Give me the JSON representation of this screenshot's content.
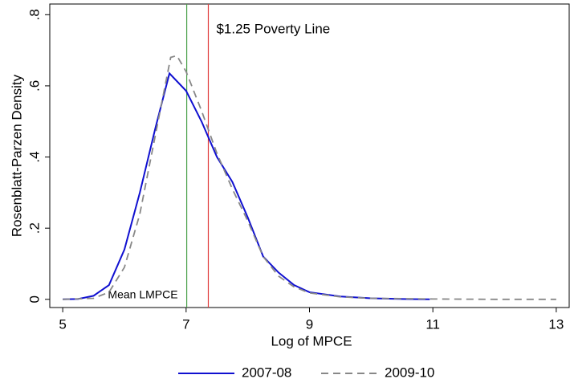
{
  "chart_data": {
    "type": "line",
    "xlabel": "Log of MPCE",
    "ylabel": "Rosenblatt-Parzen Density",
    "xlim": [
      4.79,
      13.21
    ],
    "ylim": [
      -0.023,
      0.83
    ],
    "xticks": [
      5,
      7,
      9,
      11,
      13
    ],
    "yticks": [
      0,
      {
        "value": 0.2,
        "label": ".2"
      },
      {
        "value": 0.4,
        "label": ".4"
      },
      {
        "value": 0.6,
        "label": ".6"
      },
      {
        "value": 0.8,
        "label": ".8"
      }
    ],
    "grid": false,
    "legend": "bottom",
    "series": [
      {
        "name": "2007-08",
        "color": "#1010d0",
        "dash": false,
        "x": [
          5.0,
          5.25,
          5.5,
          5.75,
          6.0,
          6.25,
          6.5,
          6.73,
          7.0,
          7.25,
          7.5,
          7.75,
          8.0,
          8.25,
          8.5,
          8.75,
          9.0,
          9.5,
          10.0,
          10.5,
          10.95
        ],
        "values": [
          0,
          0.001,
          0.01,
          0.04,
          0.14,
          0.3,
          0.48,
          0.635,
          0.586,
          0.5,
          0.4,
          0.33,
          0.23,
          0.12,
          0.075,
          0.04,
          0.02,
          0.008,
          0.003,
          0.001,
          0
        ]
      },
      {
        "name": "2009-10",
        "color": "#888888",
        "dash": true,
        "x": [
          5.0,
          5.5,
          5.75,
          6.0,
          6.25,
          6.5,
          6.75,
          6.85,
          7.0,
          7.25,
          7.5,
          7.75,
          8.0,
          8.25,
          8.5,
          8.75,
          9.0,
          9.5,
          10.0,
          11.0,
          12.0,
          13.0
        ],
        "values": [
          0,
          0.003,
          0.02,
          0.09,
          0.24,
          0.46,
          0.68,
          0.685,
          0.64,
          0.53,
          0.41,
          0.31,
          0.22,
          0.12,
          0.065,
          0.035,
          0.018,
          0.007,
          0.003,
          0.001,
          0,
          0
        ]
      }
    ],
    "vlines": [
      {
        "x": 7.01,
        "color": "#4aa04a",
        "label": "Mean LMPCE",
        "label_side": "bottom-left"
      },
      {
        "x": 7.36,
        "color": "#e03a3a",
        "label": "$1.25 Poverty Line",
        "label_side": "top-right"
      }
    ]
  }
}
